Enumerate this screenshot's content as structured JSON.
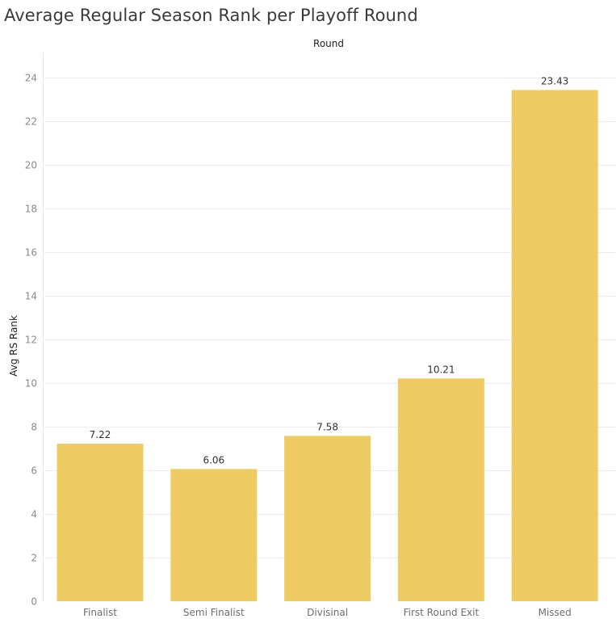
{
  "title": "Average Regular Season Rank per Playoff Round",
  "chart_data": {
    "type": "bar",
    "title": "Average Regular Season Rank per Playoff Round",
    "xlabel": "Round",
    "ylabel": "Avg RS Rank",
    "categories": [
      "Finalist",
      "Semi Finalist",
      "Divisinal",
      "First Round Exit",
      "Missed"
    ],
    "values": [
      7.22,
      6.06,
      7.58,
      10.21,
      23.43
    ],
    "value_labels": [
      "7.22",
      "6.06",
      "7.58",
      "10.21",
      "23.43"
    ],
    "y_ticks": [
      "0",
      "2",
      "4",
      "6",
      "8",
      "10",
      "12",
      "14",
      "16",
      "18",
      "20",
      "22",
      "24"
    ],
    "ylim": [
      0,
      25
    ],
    "grid": true,
    "bar_color": "#EECC63",
    "grid_color": "#EEEEEE"
  }
}
